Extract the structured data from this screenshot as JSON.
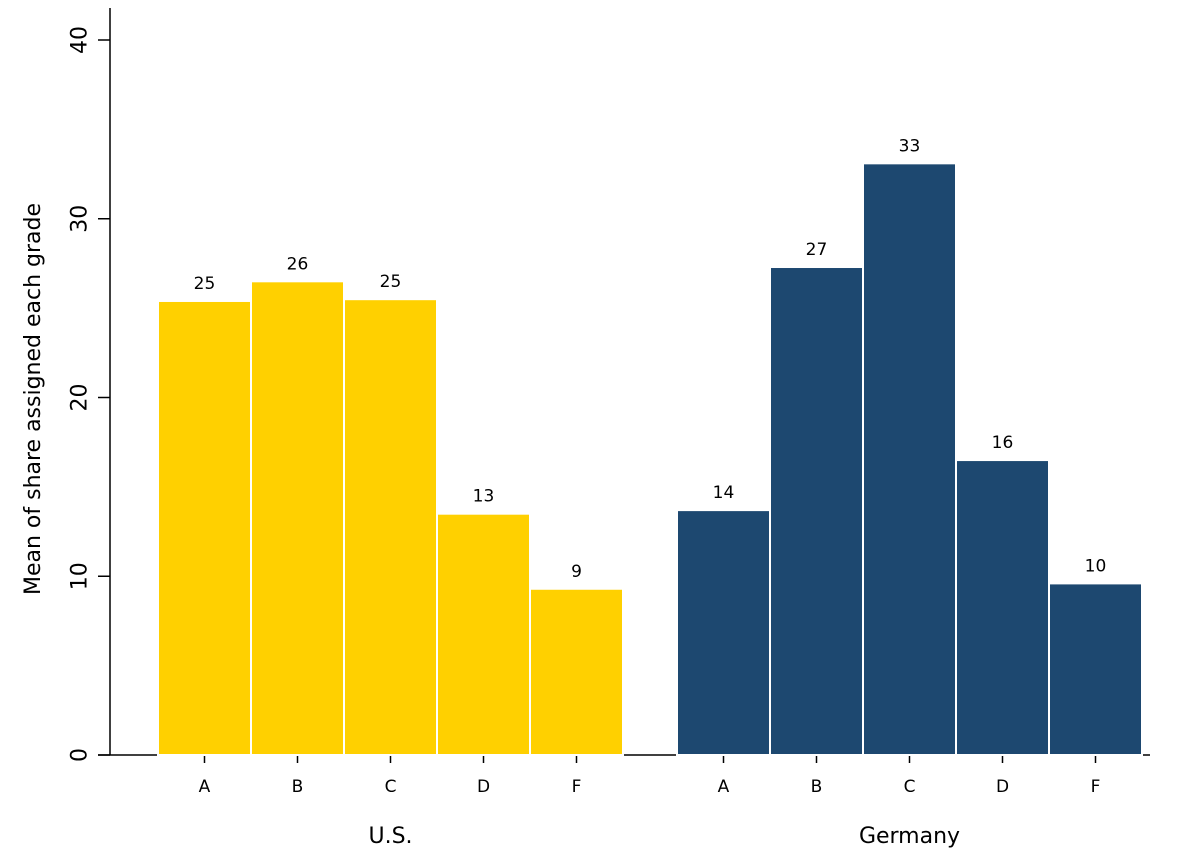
{
  "chart_data": {
    "type": "bar",
    "title": "",
    "xlabel": "",
    "ylabel": "Mean of share assigned each grade",
    "ylim": [
      0,
      40
    ],
    "yticks": [
      0,
      10,
      20,
      30,
      40
    ],
    "grid": false,
    "legend": "none",
    "groups": [
      {
        "name": "U.S.",
        "color": "#FFD000",
        "categories": [
          "A",
          "B",
          "C",
          "D",
          "F"
        ],
        "values": [
          25.4,
          26.5,
          25.5,
          13.5,
          9.3
        ],
        "labels": [
          "25",
          "26",
          "25",
          "13",
          "9"
        ]
      },
      {
        "name": "Germany",
        "color": "#1D4870",
        "categories": [
          "A",
          "B",
          "C",
          "D",
          "F"
        ],
        "values": [
          13.7,
          27.3,
          33.1,
          16.5,
          9.6
        ],
        "labels": [
          "14",
          "27",
          "33",
          "16",
          "10"
        ]
      }
    ]
  }
}
